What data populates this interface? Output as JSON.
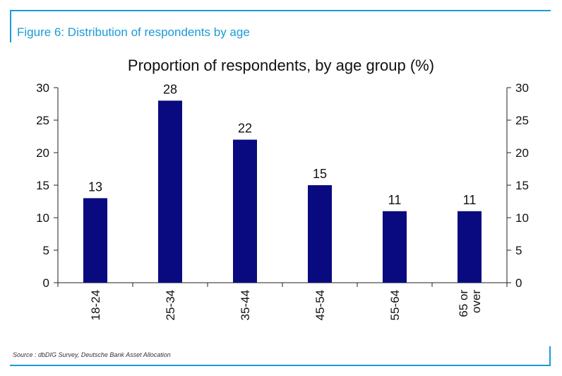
{
  "header": {
    "figure_title": "Figure 6: Distribution of respondents by age"
  },
  "footer": {
    "source": "Source : dbDIG Survey, Deutsche Bank Asset Allocation"
  },
  "colors": {
    "accent": "#1a9bd6",
    "bar": "#0a0a80",
    "axis": "#222222"
  },
  "chart_data": {
    "type": "bar",
    "title": "Proportion of respondents, by age group (%)",
    "categories": [
      [
        "18-24"
      ],
      [
        "25-34"
      ],
      [
        "35-44"
      ],
      [
        "45-54"
      ],
      [
        "55-64"
      ],
      [
        "65 or",
        "over"
      ]
    ],
    "values": [
      13,
      28,
      22,
      15,
      11,
      11
    ],
    "value_labels": [
      "13",
      "28",
      "22",
      "15",
      "11",
      "11"
    ],
    "ylim": [
      0,
      30
    ],
    "yticks": [
      0,
      5,
      10,
      15,
      20,
      25,
      30
    ],
    "secondary_yticks": [
      0,
      5,
      10,
      15,
      20,
      25,
      30
    ],
    "grid": false,
    "xlabel": "",
    "ylabel": ""
  }
}
